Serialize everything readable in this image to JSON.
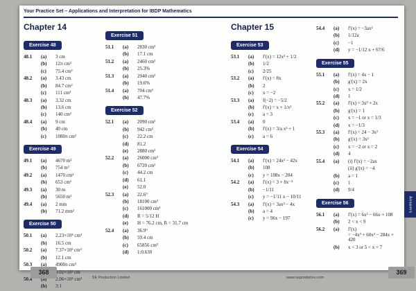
{
  "header": {
    "title": "Your Practice Set – Applications and Interpretation for IBDP Mathematics"
  },
  "colors": {
    "navy": "#1c2c6b",
    "page_bg": "#fefefd",
    "backdrop": "#b3b2af",
    "page_tab_gray": "#9c9c9a"
  },
  "left_page": {
    "chapter": "Chapter 14",
    "page_number": "368",
    "footer": "SE Production Limited",
    "columns": [
      {
        "groups": [
          {
            "badge": "Exercise 48",
            "items": [
              {
                "id": "48.1",
                "parts": [
                  [
                    "(a)",
                    "3 cm"
                  ],
                  [
                    "(b)",
                    "12π cm²"
                  ],
                  [
                    "(c)",
                    "75.4 cm²"
                  ]
                ]
              },
              {
                "id": "48.2",
                "parts": [
                  [
                    "(a)",
                    "3.43 cm"
                  ],
                  [
                    "(b)",
                    "84.7 cm²"
                  ],
                  [
                    "(c)",
                    "111 cm²"
                  ]
                ]
              },
              {
                "id": "48.3",
                "parts": [
                  [
                    "(a)",
                    "3.32 cm"
                  ],
                  [
                    "(b)",
                    "13.6 cm"
                  ],
                  [
                    "(c)",
                    "140 cm²"
                  ]
                ]
              },
              {
                "id": "48.4",
                "parts": [
                  [
                    "(a)",
                    "9 cm"
                  ],
                  [
                    "(b)",
                    "40 cm"
                  ],
                  [
                    "(c)",
                    "1080π cm²"
                  ]
                ]
              }
            ]
          },
          {
            "badge": "Exercise 49",
            "items": [
              {
                "id": "49.1",
                "parts": [
                  [
                    "(a)",
                    "4670 m²"
                  ],
                  [
                    "(b)",
                    "754 m²"
                  ]
                ]
              },
              {
                "id": "49.2",
                "parts": [
                  [
                    "(a)",
                    "1470 cm²"
                  ],
                  [
                    "(b)",
                    "653 cm²"
                  ]
                ]
              },
              {
                "id": "49.3",
                "parts": [
                  [
                    "(a)",
                    "30 m"
                  ],
                  [
                    "(b)",
                    "5650 m²"
                  ]
                ]
              },
              {
                "id": "49.4",
                "parts": [
                  [
                    "(a)",
                    "2 mm"
                  ],
                  [
                    "(b)",
                    "71.2 mm²"
                  ]
                ]
              }
            ]
          },
          {
            "badge": "Exercise 50",
            "items": [
              {
                "id": "50.1",
                "parts": [
                  [
                    "(a)",
                    "2.23×10⁴ cm³"
                  ],
                  [
                    "(b)",
                    "16.5 cm"
                  ]
                ]
              },
              {
                "id": "50.2",
                "parts": [
                  [
                    "(a)",
                    "7.37×10³ cm³"
                  ],
                  [
                    "(b)",
                    "12.1 cm"
                  ]
                ]
              },
              {
                "id": "50.3",
                "parts": [
                  [
                    "(a)",
                    "4900π cm³"
                  ],
                  [
                    "(b)",
                    "9.02×10² cm"
                  ]
                ]
              },
              {
                "id": "50.4",
                "parts": [
                  [
                    "(a)",
                    "2.06×10⁴ cm³"
                  ],
                  [
                    "(b)",
                    "3:1"
                  ]
                ]
              }
            ]
          }
        ]
      },
      {
        "groups": [
          {
            "badge": "Exercise 51",
            "items": [
              {
                "id": "51.1",
                "parts": [
                  [
                    "(a)",
                    "2830 cm³"
                  ],
                  [
                    "(b)",
                    "17.1 cm"
                  ]
                ]
              },
              {
                "id": "51.2",
                "parts": [
                  [
                    "(a)",
                    "2460 cm³"
                  ],
                  [
                    "(b)",
                    "25.3%"
                  ]
                ]
              },
              {
                "id": "51.3",
                "parts": [
                  [
                    "(a)",
                    "2940 cm³"
                  ],
                  [
                    "(b)",
                    "19.6%"
                  ]
                ]
              },
              {
                "id": "51.4",
                "parts": [
                  [
                    "(a)",
                    "704 cm³"
                  ],
                  [
                    "(b)",
                    "47.7%"
                  ]
                ]
              }
            ]
          },
          {
            "badge": "Exercise 52",
            "items": [
              {
                "id": "52.1",
                "parts": [
                  [
                    "(a)",
                    "2090 cm³"
                  ],
                  [
                    "(b)",
                    "942 cm²"
                  ],
                  [
                    "(c)",
                    "22.2 cm"
                  ],
                  [
                    "(d)",
                    "81.2"
                  ],
                  [
                    "(e)",
                    "2880 cm²"
                  ]
                ]
              },
              {
                "id": "52.2",
                "parts": [
                  [
                    "(a)",
                    "26000 cm³"
                  ],
                  [
                    "(b)",
                    "6720 cm²"
                  ],
                  [
                    "(c)",
                    "44.2 cm"
                  ],
                  [
                    "(d)",
                    "61.1"
                  ],
                  [
                    "(e)",
                    "52.0"
                  ]
                ]
              },
              {
                "id": "52.3",
                "parts": [
                  [
                    "(a)",
                    "22.6°"
                  ],
                  [
                    "(b)",
                    "18100 cm³"
                  ],
                  [
                    "(c)",
                    "161000 cm³"
                  ],
                  [
                    "(d)",
                    "R = 5/12 H"
                  ],
                  [
                    "(e)",
                    "H = 76.2 cm,  R = 31.7 cm"
                  ]
                ]
              },
              {
                "id": "52.4",
                "parts": [
                  [
                    "(a)",
                    "36.9°"
                  ],
                  [
                    "(b)",
                    "59.4 cm"
                  ],
                  [
                    "(c)",
                    "65856 cm³"
                  ],
                  [
                    "(d)",
                    "1:0.630"
                  ]
                ]
              }
            ]
          }
        ]
      }
    ]
  },
  "right_page": {
    "chapter": "Chapter 15",
    "page_number": "369",
    "footer": "www.seprodstore.com",
    "side_tab": "Answers",
    "columns": [
      {
        "groups": [
          {
            "badge": "Exercise 53",
            "items": [
              {
                "id": "53.1",
                "parts": [
                  [
                    "(a)",
                    "f′(x) = 12x² + 1/2"
                  ],
                  [
                    "(b)",
                    "1/2"
                  ],
                  [
                    "(c)",
                    "2/25"
                  ]
                ]
              },
              {
                "id": "53.2",
                "parts": [
                  [
                    "(a)",
                    "f′(x) = 8x"
                  ],
                  [
                    "(b)",
                    "2"
                  ],
                  [
                    "(c)",
                    "x = −2"
                  ]
                ]
              },
              {
                "id": "53.3",
                "parts": [
                  [
                    "(a)",
                    "f(−2) = −5/2"
                  ],
                  [
                    "(b)",
                    "f′(x) = x + 1/x²"
                  ],
                  [
                    "(c)",
                    "a = 3"
                  ]
                ]
              },
              {
                "id": "53.4",
                "parts": [
                  [
                    "(a)",
                    "0"
                  ],
                  [
                    "(b)",
                    "f′(x) = 3/a x² + 1"
                  ],
                  [
                    "(c)",
                    "a = 6"
                  ]
                ]
              }
            ]
          },
          {
            "badge": "Exercise 54",
            "items": [
              {
                "id": "54.1",
                "parts": [
                  [
                    "(a)",
                    "f′(x) = 24x² − 42x"
                  ],
                  [
                    "(b)",
                    "108"
                  ],
                  [
                    "(c)",
                    "y = 108x − 204"
                  ]
                ]
              },
              {
                "id": "54.2",
                "parts": [
                  [
                    "(a)",
                    "f′(x) = 3 + 8x⁻²"
                  ],
                  [
                    "(b)",
                    "−1/11"
                  ],
                  [
                    "(c)",
                    "y = −1/11 x − 10/11"
                  ]
                ]
              },
              {
                "id": "54.3",
                "parts": [
                  [
                    "(a)",
                    "f′(x) = 3ax² − 4x"
                  ],
                  [
                    "(b)",
                    "a = 4"
                  ],
                  [
                    "(c)",
                    "y = 96x − 197"
                  ]
                ]
              }
            ]
          }
        ]
      },
      {
        "groups": [
          {
            "items": [
              {
                "id": "54.4",
                "parts": [
                  [
                    "(a)",
                    "f′(x) = −3ax²"
                  ],
                  [
                    "(b)",
                    "1/12a"
                  ],
                  [
                    "(c)",
                    "−1"
                  ],
                  [
                    "(d)",
                    "y = −1/12 x + 67/6"
                  ]
                ]
              }
            ]
          },
          {
            "badge": "Exercise 55",
            "items": [
              {
                "id": "55.1",
                "parts": [
                  [
                    "(a)",
                    "f′(x) = 4x − 1"
                  ],
                  [
                    "(b)",
                    "g′(x) = 2x"
                  ],
                  [
                    "(c)",
                    "x = 1/2"
                  ],
                  [
                    "(d)",
                    "1"
                  ]
                ]
              },
              {
                "id": "55.2",
                "parts": [
                  [
                    "(a)",
                    "f′(x) = 3x² + 2x"
                  ],
                  [
                    "(b)",
                    "g′(x) = 1"
                  ],
                  [
                    "(c)",
                    "x = −1 or x = 1/3"
                  ],
                  [
                    "(d)",
                    "x = −1/3"
                  ]
                ]
              },
              {
                "id": "55.3",
                "parts": [
                  [
                    "(a)",
                    "f′(x) = 24 − 3x²"
                  ],
                  [
                    "(b)",
                    "g′(x) = 3x²"
                  ],
                  [
                    "(c)",
                    "x = −2 or x = 2"
                  ],
                  [
                    "(d)",
                    "4"
                  ]
                ]
              },
              {
                "id": "55.4",
                "parts": [
                  [
                    "(a)",
                    "(i)   f′(x) = −2ax"
                  ],
                  [
                    "",
                    "(ii)  g′(x) = −4"
                  ],
                  [
                    "(b)",
                    "a = 1"
                  ],
                  [
                    "(c)",
                    "1"
                  ],
                  [
                    "(d)",
                    "9/4"
                  ]
                ]
              }
            ]
          },
          {
            "badge": "Exercise 56",
            "items": [
              {
                "id": "56.1",
                "parts": [
                  [
                    "(a)",
                    "f′(x) = 6x² − 66x + 108"
                  ],
                  [
                    "(b)",
                    "2 < x < 9"
                  ]
                ]
              },
              {
                "id": "56.2",
                "parts": [
                  [
                    "(a)",
                    "f′(x)\n= −4x³ + 60x² − 284x + 420"
                  ],
                  [
                    "(b)",
                    "x < 3  or  5 < x < 7"
                  ]
                ]
              }
            ]
          }
        ]
      }
    ]
  }
}
